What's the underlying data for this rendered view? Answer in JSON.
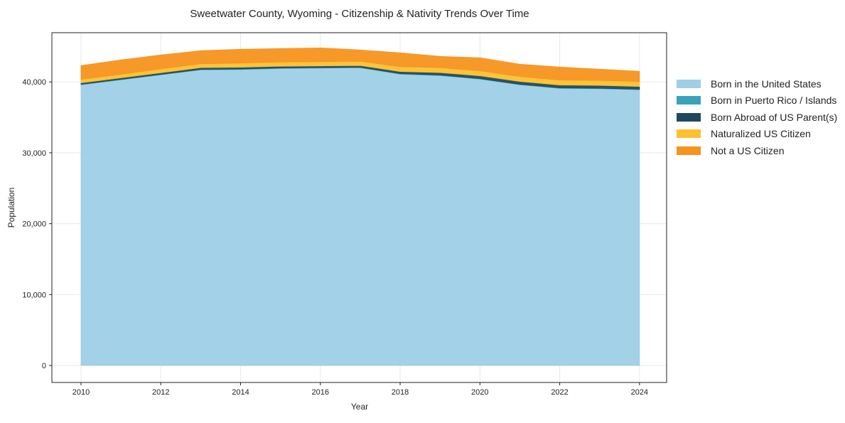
{
  "chart_data": {
    "type": "area",
    "stacked": true,
    "title": "Sweetwater County, Wyoming - Citizenship & Nativity Trends Over Time",
    "xlabel": "Year",
    "ylabel": "Population",
    "x": [
      2010,
      2011,
      2012,
      2013,
      2014,
      2015,
      2016,
      2017,
      2018,
      2019,
      2020,
      2021,
      2022,
      2023,
      2024
    ],
    "xticks": [
      2010,
      2012,
      2014,
      2016,
      2018,
      2020,
      2022,
      2024
    ],
    "xtick_labels": [
      "2010",
      "2012",
      "2014",
      "2016",
      "2018",
      "2020",
      "2022",
      "2024"
    ],
    "yticks": [
      0,
      10000,
      20000,
      30000,
      40000
    ],
    "ytick_labels": [
      "0",
      "10,000",
      "20,000",
      "30,000",
      "40,000"
    ],
    "xlim": [
      2009.27,
      2024.68
    ],
    "ylim": [
      -2400,
      46940
    ],
    "grid": true,
    "legend_position": "right-outside-top",
    "series": [
      {
        "name": "Born in the United States",
        "color": "#9ecfe6",
        "values": [
          39600,
          40300,
          41000,
          41700,
          41750,
          41900,
          41950,
          42000,
          41100,
          40900,
          40400,
          39600,
          39100,
          39050,
          38900
        ]
      },
      {
        "name": "Born in Puerto Rico / Islands",
        "color": "#3aa3bc",
        "values": [
          60,
          60,
          60,
          60,
          60,
          60,
          60,
          60,
          60,
          60,
          60,
          60,
          60,
          60,
          60
        ]
      },
      {
        "name": "Born Abroad of US Parent(s)",
        "color": "#1f4a5c",
        "values": [
          200,
          220,
          230,
          250,
          250,
          250,
          250,
          250,
          300,
          350,
          400,
          400,
          400,
          400,
          400
        ]
      },
      {
        "name": "Naturalized US Citizen",
        "color": "#fdc02f",
        "values": [
          500,
          500,
          550,
          550,
          600,
          600,
          600,
          600,
          700,
          700,
          700,
          700,
          700,
          700,
          700
        ]
      },
      {
        "name": "Not a US Citizen",
        "color": "#f7931e",
        "values": [
          1940,
          2020,
          1960,
          1840,
          1940,
          1890,
          1940,
          1590,
          1940,
          1590,
          1840,
          1740,
          1840,
          1590,
          1440
        ]
      }
    ]
  }
}
